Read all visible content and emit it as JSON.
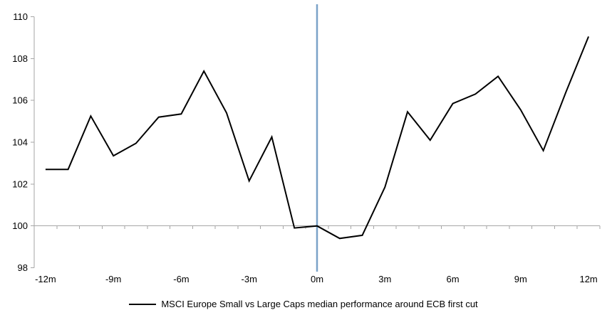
{
  "chart_data": {
    "type": "line",
    "title": "",
    "x": [
      -12,
      -11,
      -10,
      -9,
      -8,
      -7,
      -6,
      -5,
      -4,
      -3,
      -2,
      -1,
      0,
      1,
      2,
      3,
      4,
      5,
      6,
      7,
      8,
      9,
      10,
      11,
      12
    ],
    "series": [
      {
        "name": "MSCI Europe Small vs Large Caps median performance around ECB first cut",
        "values": [
          102.7,
          102.7,
          105.25,
          103.35,
          103.95,
          105.2,
          105.35,
          107.4,
          105.4,
          102.15,
          104.25,
          99.9,
          100.0,
          99.4,
          99.55,
          101.85,
          105.45,
          104.1,
          105.85,
          106.3,
          107.15,
          105.55,
          103.6,
          106.4,
          109.05
        ]
      }
    ],
    "xlabel": "",
    "ylabel": "",
    "ylim": [
      98,
      110
    ],
    "y_ticks": [
      98,
      100,
      102,
      104,
      106,
      108,
      110
    ],
    "y_tick_labels": [
      "98",
      "100",
      "102",
      "104",
      "106",
      "108",
      "110"
    ],
    "x_ticks": [
      -12,
      -9,
      -6,
      -3,
      0,
      3,
      6,
      9,
      12
    ],
    "x_tick_labels": [
      "-12m",
      "-9m",
      "-6m",
      "-3m",
      "0m",
      "3m",
      "6m",
      "9m",
      "12m"
    ],
    "axis_crosses_at": 100,
    "event_line_at_month": 0,
    "grid": false,
    "legend_position": "bottom"
  },
  "colors": {
    "series_line": "#000000",
    "event_line": "#7aa2c8",
    "axis_line": "#a6a6a6",
    "label_text": "#000000",
    "background": "#ffffff"
  }
}
